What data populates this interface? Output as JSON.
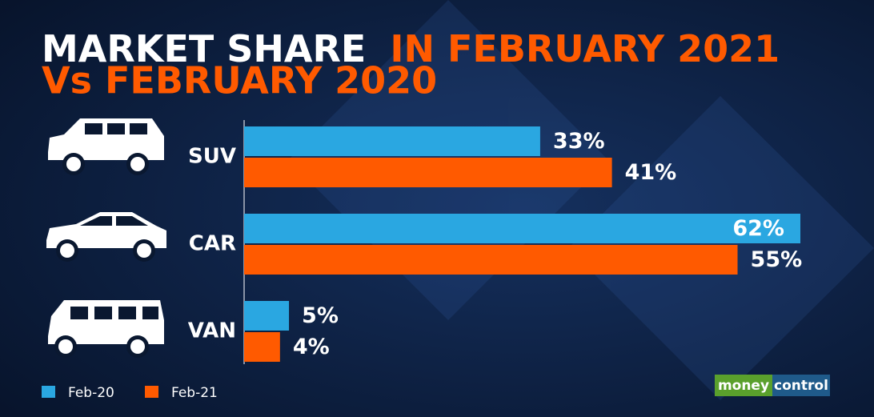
{
  "chart_data": {
    "type": "hbar",
    "title": [
      "MARKET SHARE",
      "IN FEBRUARY 2021",
      "Vs FEBRUARY 2020"
    ],
    "categories": [
      "SUV",
      "CAR",
      "VAN"
    ],
    "series": [
      {
        "name": "Feb-20",
        "color": "#2aa7e1",
        "values": [
          33,
          62,
          5
        ],
        "value_labels": [
          "33%",
          "62%",
          "5%"
        ]
      },
      {
        "name": "Feb-21",
        "color": "#ff5a00",
        "values": [
          41,
          55,
          4
        ],
        "value_labels": [
          "41%",
          "55%",
          "4%"
        ]
      }
    ],
    "legend": "bottom-left",
    "logo": [
      "money",
      "control"
    ]
  }
}
